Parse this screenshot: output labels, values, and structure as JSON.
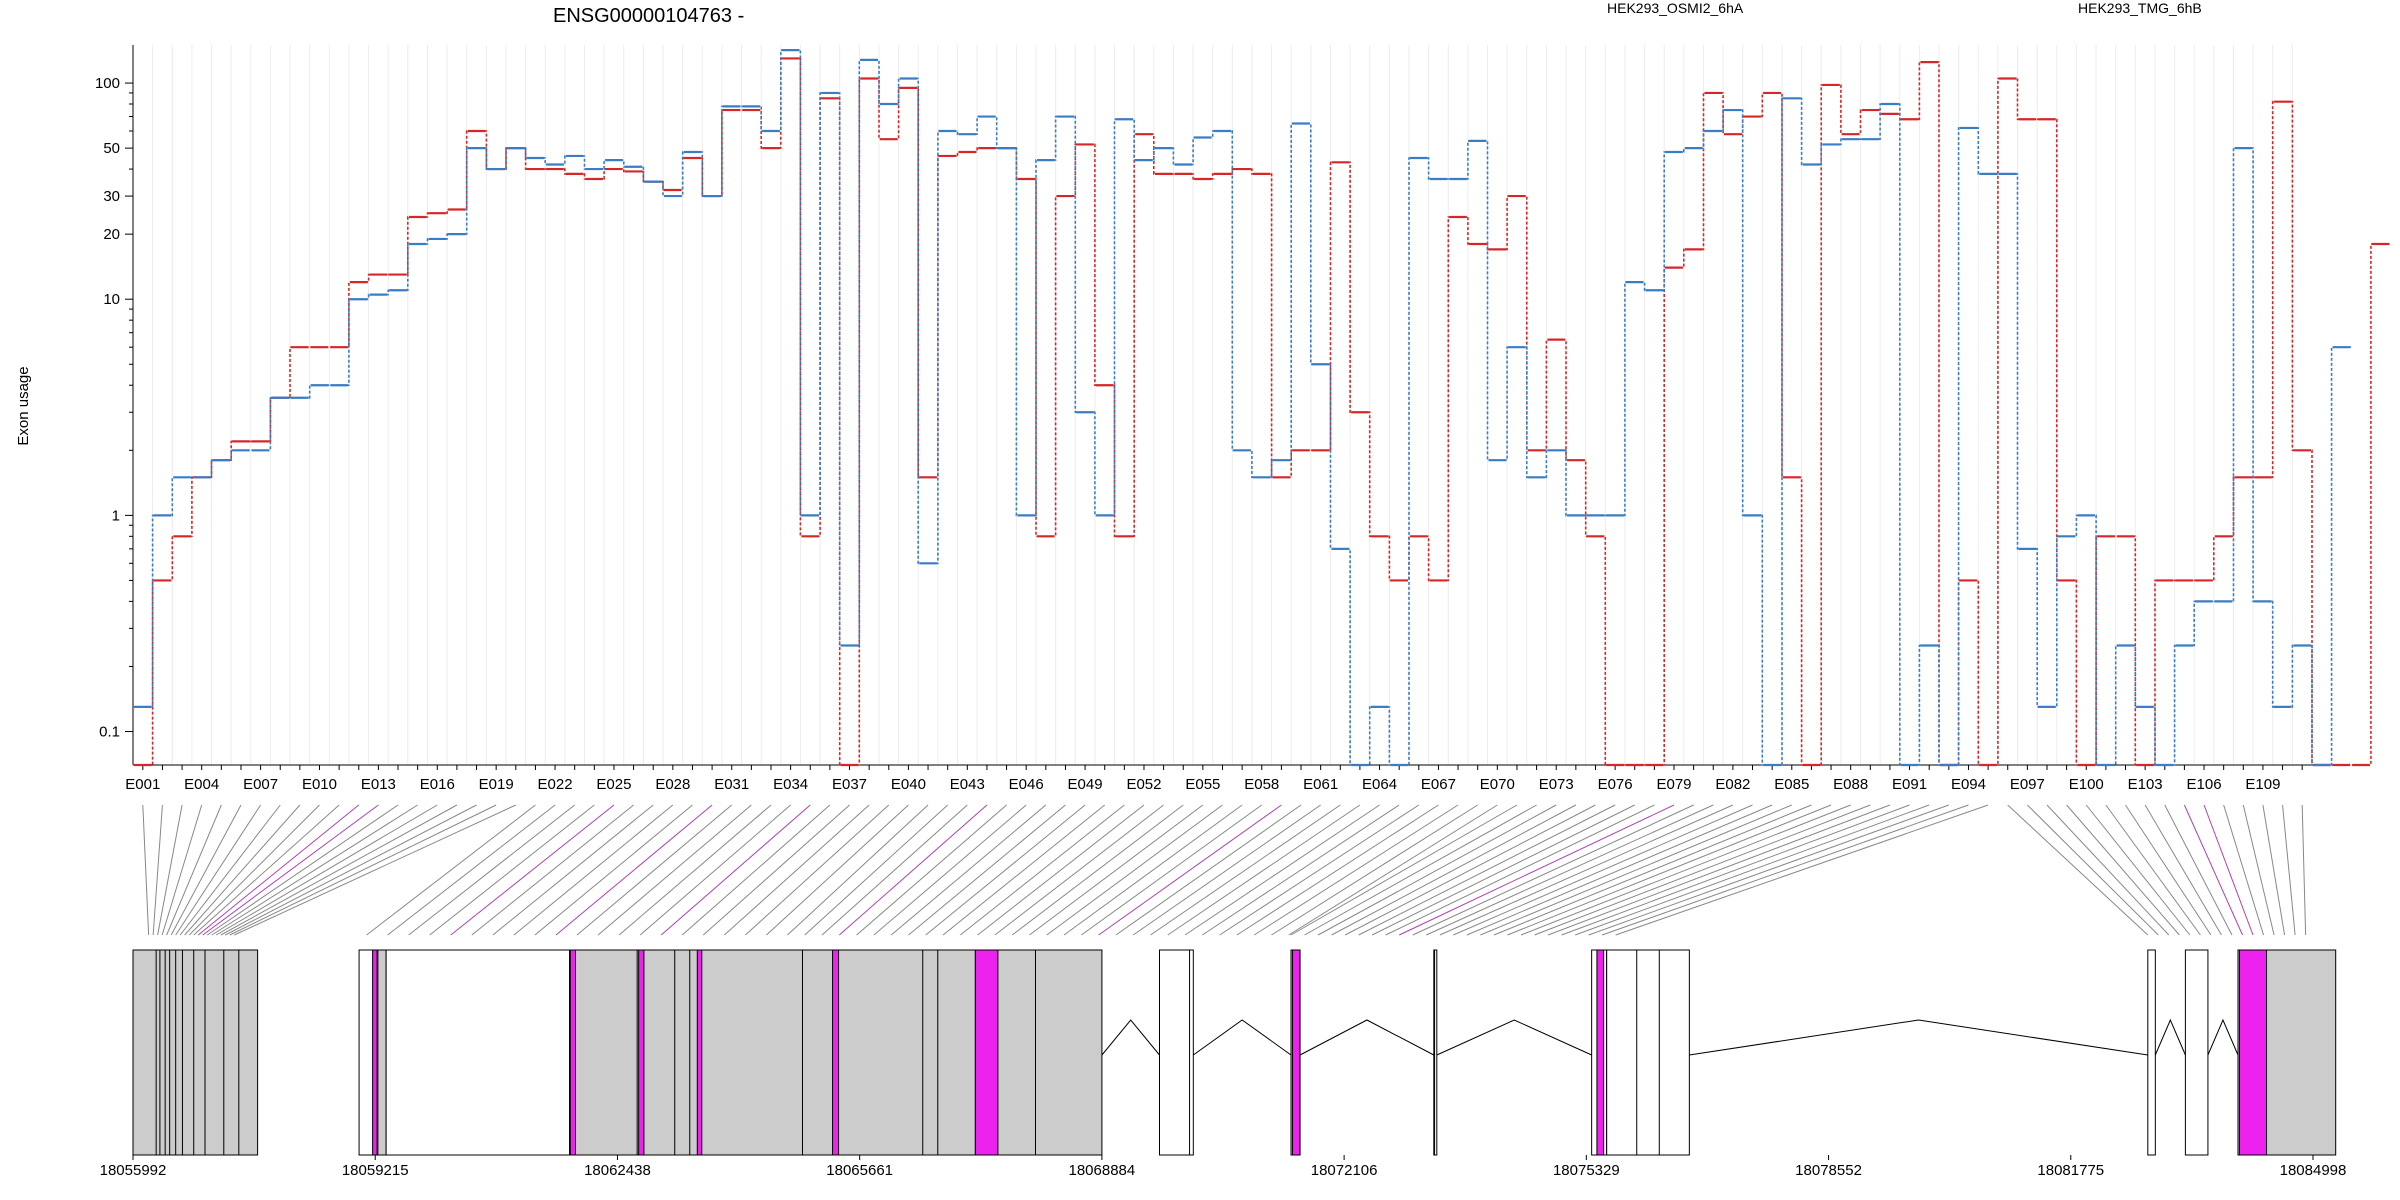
{
  "chart_data": {
    "type": "line",
    "title": "ENSG00000104763 -",
    "ylabel": "Exon usage",
    "xlabel": "",
    "yscale": "log",
    "ylim": [
      0.07,
      150
    ],
    "yticks": [
      0.1,
      1,
      10,
      20,
      30,
      50,
      100
    ],
    "ytick_labels": [
      "0.1",
      "1",
      "10",
      "20",
      "30",
      "50",
      "100"
    ],
    "exon_tick_labels": [
      "E001",
      "E004",
      "E007",
      "E010",
      "E013",
      "E016",
      "E019",
      "E022",
      "E025",
      "E028",
      "E031",
      "E034",
      "E037",
      "E040",
      "E043",
      "E046",
      "E049",
      "E052",
      "E055",
      "E058",
      "E061",
      "E064",
      "E067",
      "E070",
      "E073",
      "E076",
      "E079",
      "E082",
      "E085",
      "E088",
      "E091",
      "E094",
      "E097",
      "E100",
      "E103",
      "E106",
      "E109"
    ],
    "exon_count": 111,
    "genomic_tick_labels": [
      "18055992",
      "18059215",
      "18062438",
      "18065661",
      "18068884",
      "18072106",
      "18075329",
      "18078552",
      "18081775",
      "18084998"
    ],
    "genomic_range": [
      18055992,
      18084998
    ],
    "legend_placement": "top",
    "series": [
      {
        "name": "HEK293_OSMI2_6hA",
        "color": "#d62728",
        "values": [
          0.07,
          0.5,
          0.8,
          1.5,
          1.8,
          2.2,
          2.2,
          3.5,
          6,
          6,
          6,
          12,
          13,
          13,
          24,
          25,
          26,
          60,
          40,
          50,
          40,
          40,
          38,
          36,
          40,
          39,
          35,
          32,
          45,
          30,
          75,
          75,
          50,
          130,
          0.8,
          85,
          0.07,
          105,
          55,
          95,
          1.5,
          46,
          48,
          50,
          50,
          36,
          0.8,
          30,
          52,
          4,
          0.8,
          58,
          38,
          38,
          36,
          38,
          40,
          38,
          1.5,
          2,
          2,
          43,
          3,
          0.8,
          0.5,
          0.8,
          0.5,
          24,
          18,
          17,
          30,
          2,
          6.5,
          1.8,
          0.8,
          0.07,
          0.07,
          0.07,
          14,
          17,
          90,
          58,
          70,
          90,
          1.5,
          0.07,
          98,
          58,
          75,
          72,
          68,
          125,
          0.07,
          0.5,
          0.07,
          105,
          68,
          68,
          0.5,
          0.07,
          0.8,
          0.8,
          0.07,
          0.5,
          0.5,
          0.5,
          0.8,
          1.5,
          1.5,
          82,
          2,
          0.07,
          0.07,
          0.07,
          18
        ]
      },
      {
        "name": "HEK293_TMG_6hB",
        "color": "#3a7dc4",
        "values": [
          0.13,
          1,
          1.5,
          1.5,
          1.8,
          2,
          2,
          3.5,
          3.5,
          4,
          4,
          10,
          10.5,
          11,
          18,
          19,
          20,
          50,
          40,
          50,
          45,
          42,
          46,
          40,
          44,
          41,
          35,
          30,
          48,
          30,
          78,
          78,
          60,
          142,
          1,
          90,
          0.25,
          128,
          80,
          105,
          0.6,
          60,
          58,
          70,
          50,
          1,
          44,
          70,
          3,
          1,
          68,
          44,
          50,
          42,
          56,
          60,
          2,
          1.5,
          1.8,
          65,
          5,
          0.7,
          0.07,
          0.13,
          0.07,
          45,
          36,
          36,
          54,
          1.8,
          6,
          1.5,
          2,
          1,
          1,
          1,
          12,
          11,
          48,
          50,
          60,
          75,
          1,
          0.07,
          85,
          42,
          52,
          55,
          55,
          80,
          0.07,
          0.25,
          0.07,
          62,
          38,
          38,
          0.7,
          0.13,
          0.8,
          1,
          0.07,
          0.25,
          0.13,
          0.07,
          0.25,
          0.4,
          0.4,
          50,
          0.4,
          0.13,
          0.25,
          0.07,
          6
        ]
      }
    ]
  },
  "gene_model": {
    "highlight_color": "#ee22ee",
    "fill_color": "#cccccc"
  }
}
